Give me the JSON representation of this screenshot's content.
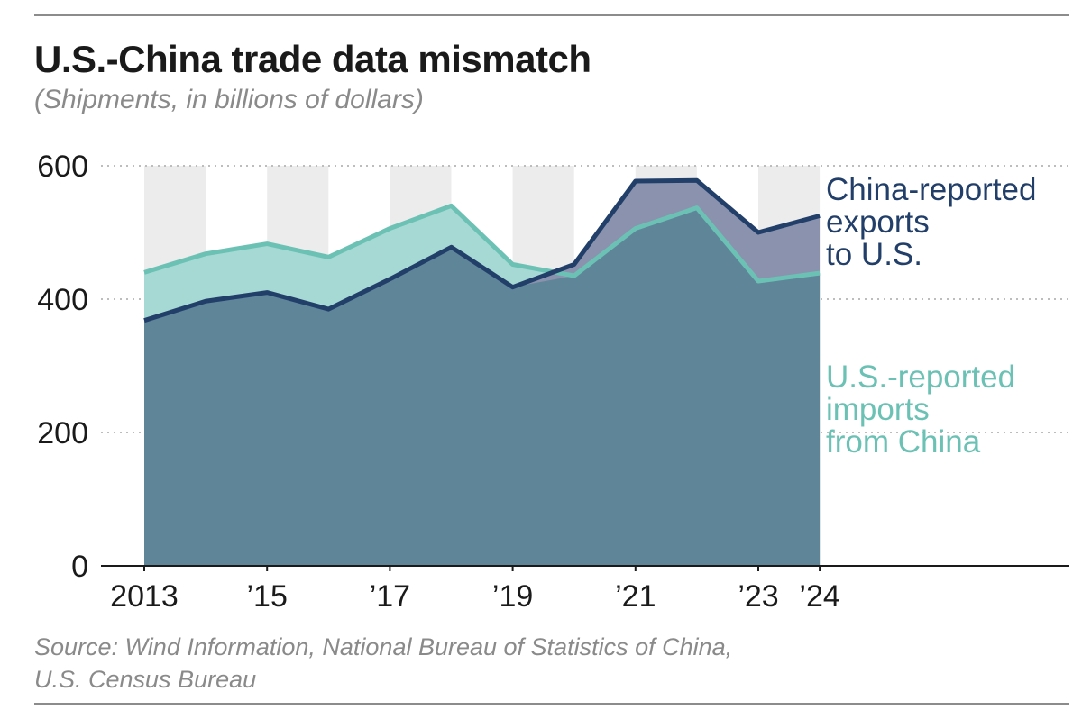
{
  "title": "U.S.-China trade data mismatch",
  "subtitle": "(Shipments, in billions of dollars)",
  "source": {
    "line1": "Source: Wind Information, National Bureau of Statistics of China,",
    "line2": "U.S. Census Bureau"
  },
  "colors": {
    "china_line": "#223f6a",
    "us_line": "#6cc1b5",
    "overlap_fill": "#5f8599",
    "china_excess_fill": "#8a92ad",
    "us_excess_fill": "#a7d9d4",
    "band": "#ececec",
    "grid": "#bdbdbd",
    "axis": "#1a1a1a"
  },
  "chart_data": {
    "type": "area",
    "x": [
      2013,
      2014,
      2015,
      2016,
      2017,
      2018,
      2019,
      2020,
      2021,
      2022,
      2023,
      2024
    ],
    "xtick_values": [
      2013,
      2015,
      2017,
      2019,
      2021,
      2023,
      2024
    ],
    "xtick_labels": [
      "2013",
      "’15",
      "’17",
      "’19",
      "’21",
      "’23",
      "’24"
    ],
    "ylim": [
      0,
      600
    ],
    "yticks": [
      0,
      200,
      400,
      600
    ],
    "ytick_labels": [
      "0",
      "200",
      "400",
      "600"
    ],
    "grid": true,
    "series": [
      {
        "name": "China-reported exports to U.S.",
        "label_lines": [
          "China-reported",
          "exports",
          "to U.S."
        ],
        "values": [
          368,
          397,
          410,
          385,
          430,
          478,
          418,
          452,
          577,
          578,
          500,
          525
        ]
      },
      {
        "name": "U.S.-reported imports from China",
        "label_lines": [
          "U.S.-reported",
          "imports",
          "from China"
        ],
        "values": [
          440,
          468,
          483,
          463,
          506,
          540,
          452,
          435,
          506,
          537,
          427,
          439
        ]
      }
    ]
  }
}
